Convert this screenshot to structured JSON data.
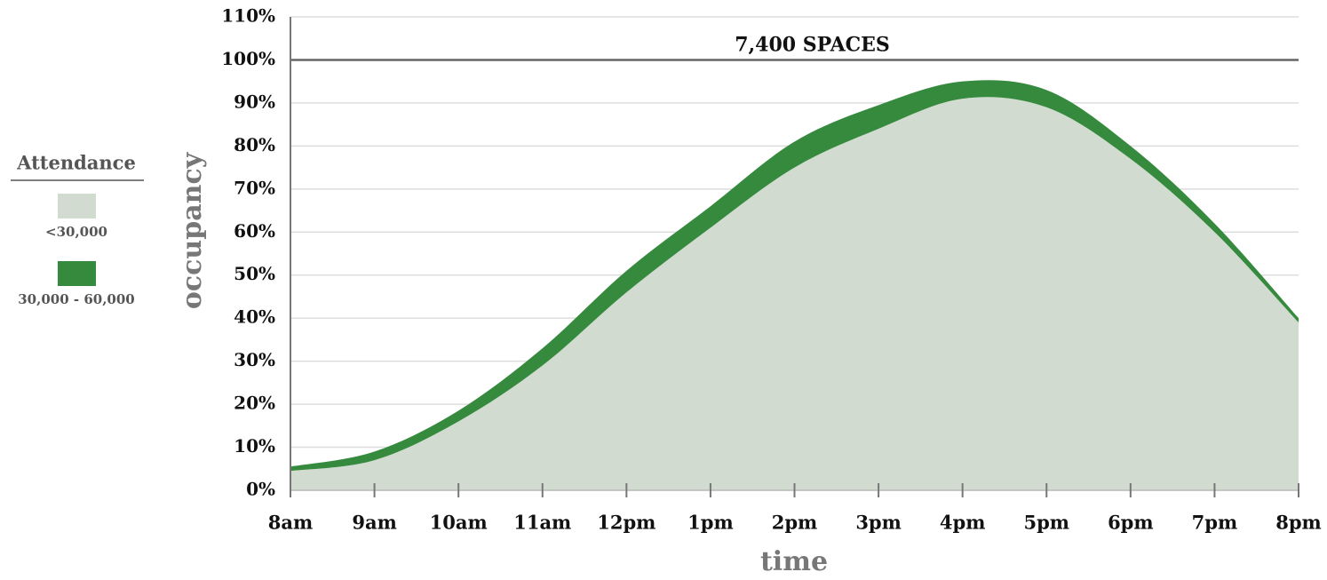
{
  "chart_data": {
    "type": "area",
    "stacked": true,
    "categories": [
      "8am",
      "9am",
      "10am",
      "11am",
      "12pm",
      "1pm",
      "2pm",
      "3pm",
      "4pm",
      "5pm",
      "6pm",
      "7pm",
      "8pm"
    ],
    "series": [
      {
        "name": "<30,000",
        "color": "#d1dbd0",
        "values": [
          4.5,
          7,
          16,
          29,
          46,
          61,
          75,
          84,
          91,
          89,
          77,
          60,
          39
        ]
      },
      {
        "name": "30,000 - 60,000",
        "color": "#368a3e",
        "values": [
          1,
          2,
          2.5,
          4,
          5,
          5,
          6,
          5.5,
          4,
          4,
          3,
          2,
          1
        ]
      }
    ],
    "ylim": [
      0,
      110
    ],
    "yticks": [
      {
        "value": 0,
        "label": "0%"
      },
      {
        "value": 10,
        "label": "10%"
      },
      {
        "value": 20,
        "label": "20%"
      },
      {
        "value": 30,
        "label": "30%"
      },
      {
        "value": 40,
        "label": "40%"
      },
      {
        "value": 50,
        "label": "50%"
      },
      {
        "value": 60,
        "label": "60%"
      },
      {
        "value": 70,
        "label": "70%"
      },
      {
        "value": 80,
        "label": "80%"
      },
      {
        "value": 90,
        "label": "90%"
      },
      {
        "value": 100,
        "label": "100%"
      },
      {
        "value": 110,
        "label": "110%"
      }
    ],
    "grid": true,
    "reference_line": {
      "value": 100,
      "label": "7,400 SPACES"
    },
    "y_label": "occupancy",
    "x_label": "time",
    "legend_title": "Attendance",
    "legend_position": "left"
  }
}
